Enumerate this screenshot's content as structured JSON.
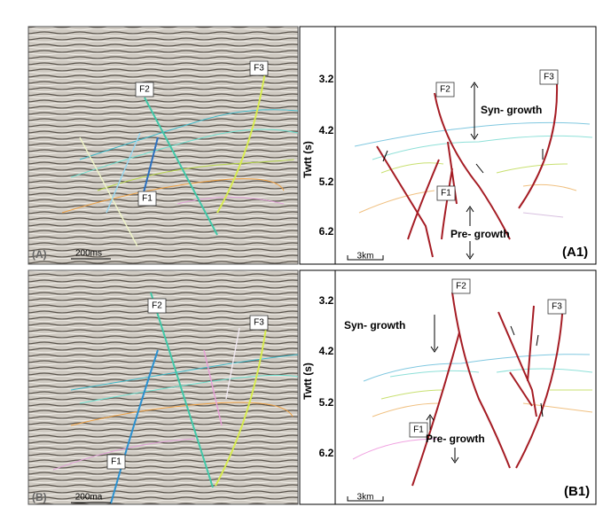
{
  "panels": [
    {
      "label": "(A)",
      "faults": [
        "F2",
        "F3",
        "F1"
      ],
      "scale": "200ms"
    },
    {
      "label": "(A1)",
      "axis_title": "Twtt (s)",
      "ticks": [
        "3.2",
        "4.2",
        "5.2",
        "6.2"
      ],
      "faults": [
        "F2",
        "F3",
        "F1"
      ],
      "annotations": [
        "Syn- growth",
        "Pre- growth"
      ],
      "scale": "3km"
    },
    {
      "label": "(B)",
      "faults": [
        "F2",
        "F3",
        "F1"
      ],
      "scale": "200ma"
    },
    {
      "label": "(B1)",
      "axis_title": "Twtt (s)",
      "ticks": [
        "3.2",
        "4.2",
        "5.2",
        "6.2"
      ],
      "faults": [
        "F2",
        "F3",
        "F1"
      ],
      "annotations": [
        "Syn- growth",
        "Pre- growth"
      ],
      "scale": "3km"
    }
  ]
}
